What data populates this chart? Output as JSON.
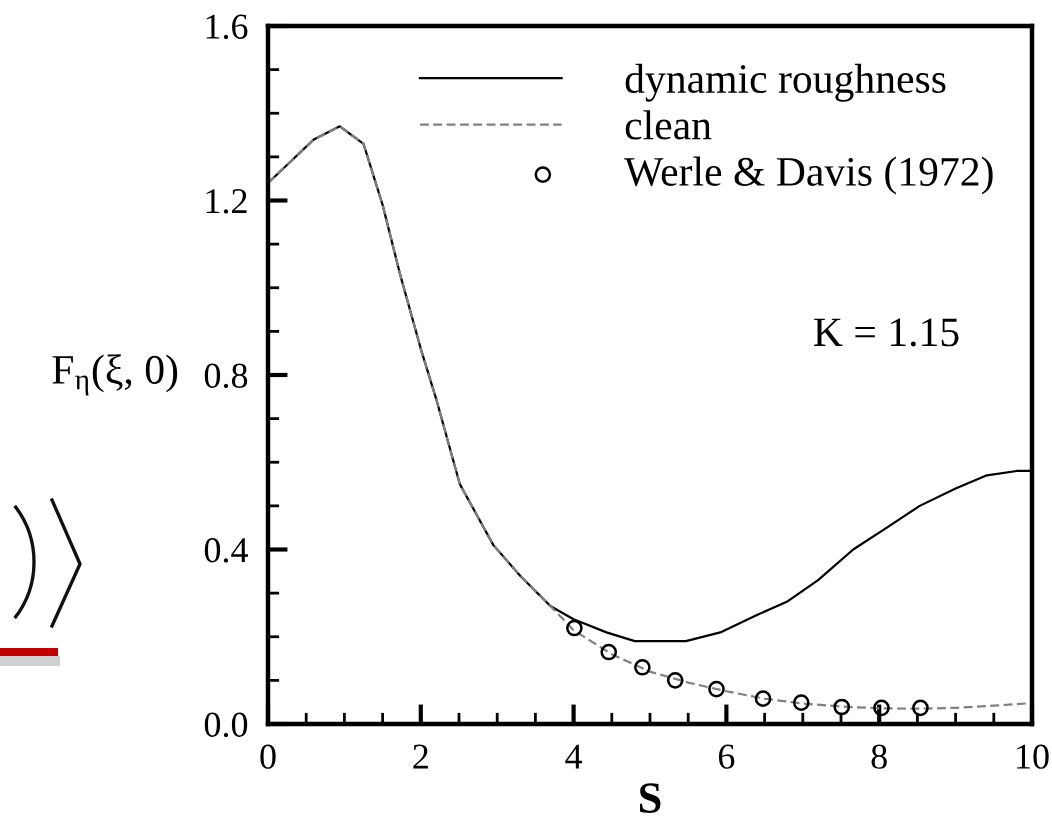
{
  "chart_data": {
    "type": "line",
    "xlabel": "S",
    "ylabel": "F$_{η}$(ξ, 0)",
    "annotations": [
      "K = 1.15"
    ],
    "xlim": [
      0,
      10
    ],
    "ylim": [
      0,
      1.6
    ],
    "xticks": [
      0,
      {
        "value": 0.5,
        "label": null
      },
      {
        "value": 1,
        "label": null
      },
      {
        "value": 1.5,
        "label": null
      },
      2,
      {
        "value": 2.5,
        "label": null
      },
      {
        "value": 3,
        "label": null
      },
      {
        "value": 3.5,
        "label": null
      },
      4,
      {
        "value": 4.5,
        "label": null
      },
      {
        "value": 5,
        "label": null
      },
      {
        "value": 5.5,
        "label": null
      },
      6,
      {
        "value": 6.5,
        "label": null
      },
      {
        "value": 7,
        "label": null
      },
      {
        "value": 7.5,
        "label": null
      },
      8,
      {
        "value": 8.5,
        "label": null
      },
      {
        "value": 9,
        "label": null
      },
      {
        "value": 9.5,
        "label": null
      },
      10
    ],
    "yticks": [
      {
        "value": 0,
        "label": "0.0"
      },
      {
        "value": 0.1,
        "label": null
      },
      {
        "value": 0.2,
        "label": null
      },
      {
        "value": 0.3,
        "label": null
      },
      {
        "value": 0.4,
        "label": "0.4"
      },
      {
        "value": 0.5,
        "label": null
      },
      {
        "value": 0.6,
        "label": null
      },
      {
        "value": 0.7,
        "label": null
      },
      {
        "value": 0.8,
        "label": "0.8"
      },
      {
        "value": 0.9,
        "label": null
      },
      {
        "value": 1.0,
        "label": null
      },
      {
        "value": 1.1,
        "label": null
      },
      {
        "value": 1.2,
        "label": "1.2"
      },
      {
        "value": 1.3,
        "label": null
      },
      {
        "value": 1.4,
        "label": null
      },
      {
        "value": 1.5,
        "label": null
      },
      {
        "value": 1.6,
        "label": "1.6"
      }
    ],
    "legend": "top right",
    "series": [
      {
        "name": "dynamic roughness",
        "color": "#000000",
        "line_style": "solid",
        "x": [
          0,
          0.3,
          0.6,
          0.94,
          1.25,
          1.5,
          1.73,
          2.0,
          2.21,
          2.51,
          2.95,
          3.3,
          3.7,
          4.0,
          4.43,
          4.8,
          5.1,
          5.47,
          5.92,
          6.4,
          6.79,
          7.2,
          7.66,
          8.1,
          8.53,
          9.0,
          9.41,
          9.8,
          10
        ],
        "values": [
          1.24,
          1.29,
          1.34,
          1.37,
          1.33,
          1.19,
          1.03,
          0.86,
          0.74,
          0.55,
          0.41,
          0.34,
          0.27,
          0.24,
          0.21,
          0.19,
          0.19,
          0.19,
          0.21,
          0.25,
          0.28,
          0.33,
          0.4,
          0.45,
          0.5,
          0.54,
          0.57,
          0.58,
          0.58
        ]
      },
      {
        "name": "clean",
        "color": "#808080",
        "line_style": "dashed",
        "x": [
          0,
          0.3,
          0.6,
          0.94,
          1.25,
          1.5,
          1.73,
          2.0,
          2.21,
          2.51,
          2.95,
          3.3,
          3.7,
          4.0,
          4.5,
          5.0,
          5.5,
          6.0,
          6.5,
          7.0,
          7.5,
          8.0,
          8.5,
          9.0,
          9.5,
          10
        ],
        "values": [
          1.24,
          1.29,
          1.34,
          1.37,
          1.33,
          1.19,
          1.03,
          0.86,
          0.74,
          0.55,
          0.41,
          0.34,
          0.27,
          0.215,
          0.16,
          0.12,
          0.095,
          0.075,
          0.058,
          0.047,
          0.04,
          0.036,
          0.035,
          0.037,
          0.042,
          0.048
        ]
      },
      {
        "name": "Werle & Davis (1972)",
        "type": "scatter",
        "color": "#000000",
        "marker": "circle",
        "x": [
          4.01,
          4.46,
          4.9,
          5.33,
          5.87,
          6.48,
          6.98,
          7.51,
          8.03,
          8.54
        ],
        "values": [
          0.22,
          0.165,
          0.13,
          0.1,
          0.08,
          0.058,
          0.049,
          0.039,
          0.037,
          0.037
        ]
      }
    ]
  }
}
